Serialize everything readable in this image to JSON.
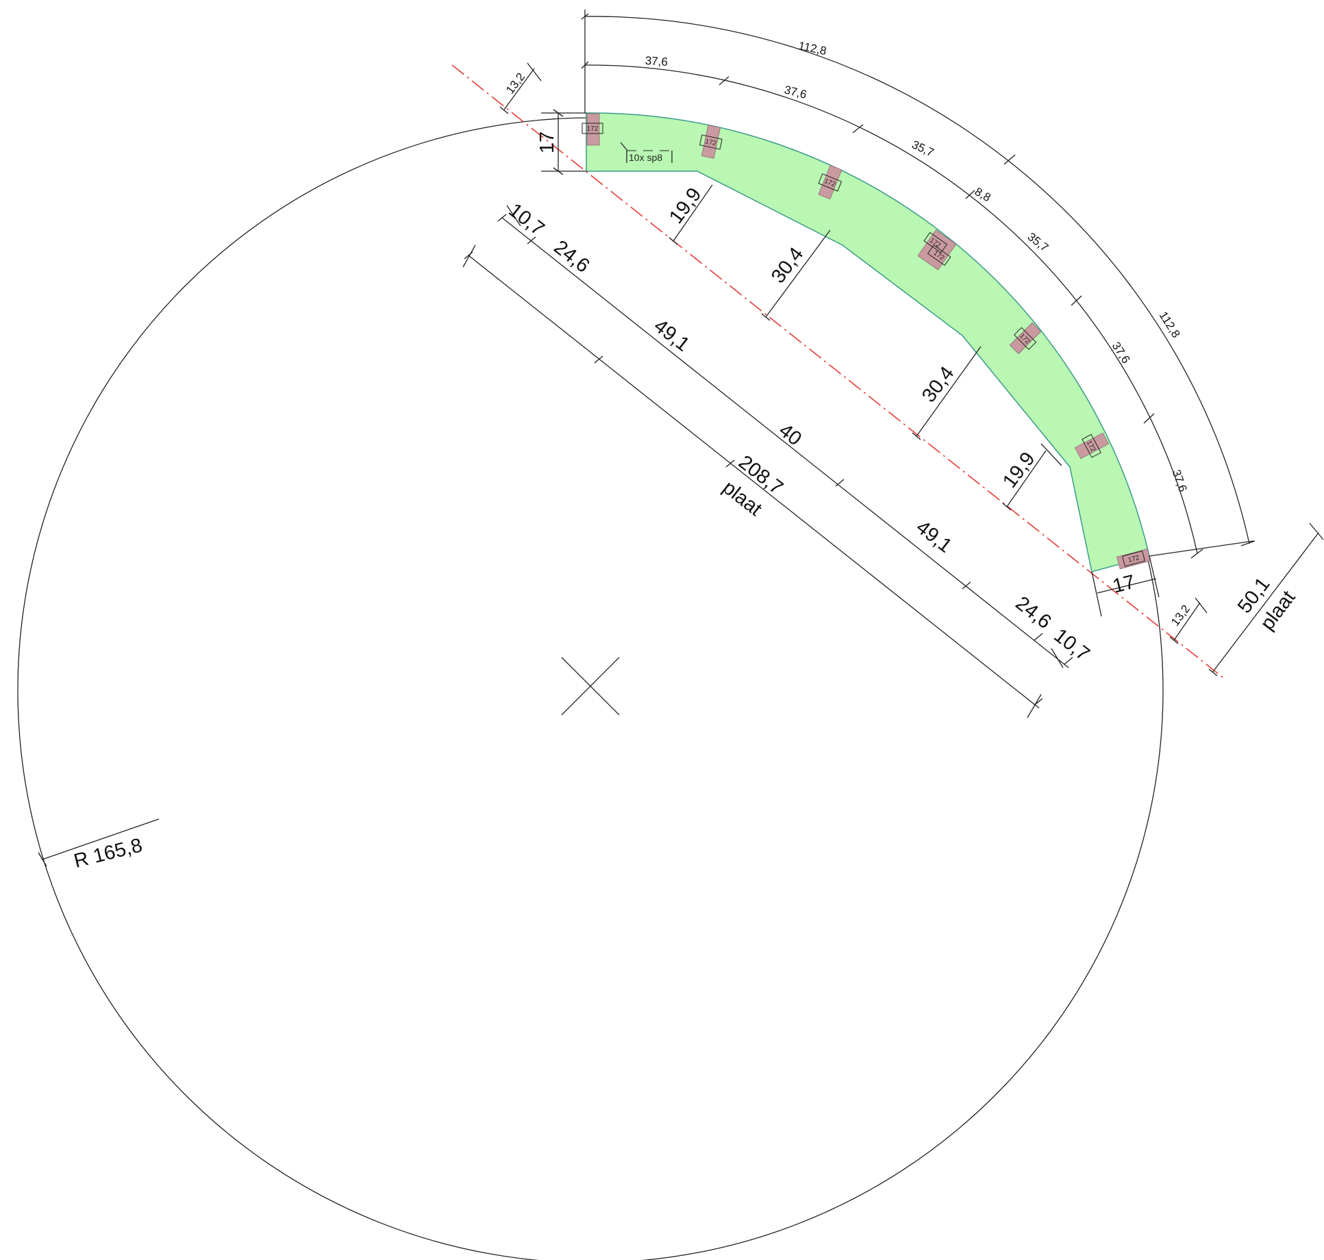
{
  "colors": {
    "strip_fill": "#b9f7b2",
    "strip_edge": "#3a9a8a",
    "block_fill": "#c99aa0",
    "cut_line": "#e53935",
    "ink": "#222222"
  },
  "strip_note": "10x sp8",
  "block_tag": "172",
  "outer_arc_dims": {
    "total_left": "112,8",
    "total_right": "112,8",
    "segments": [
      "37,6",
      "37,6",
      "35,7",
      "8,8",
      "35,7",
      "37,6",
      "37,6"
    ]
  },
  "end_offsets": {
    "left": "13,2",
    "right": "13,2"
  },
  "end_widths": {
    "left": "17",
    "right": "17"
  },
  "inner_depths": {
    "d1": "19,9",
    "d2": "30,4",
    "d3": "30,4",
    "d4": "19,9"
  },
  "chord_dims": {
    "segments": [
      "10,7",
      "24,6",
      "49,1",
      "40",
      "49,1",
      "24,6",
      "10,7"
    ],
    "total": "208,7",
    "total_caption": "plaat"
  },
  "plate_width": {
    "value": "50,1",
    "caption": "plaat"
  },
  "radius_label": "R 165,8"
}
